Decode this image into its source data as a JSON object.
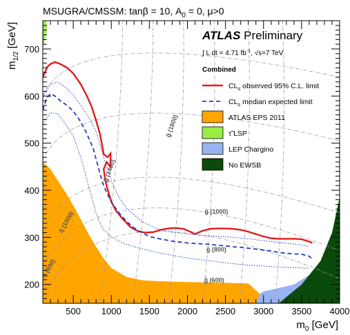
{
  "chart_data": {
    "type": "line",
    "title": "MSUGRA/CMSSM: tanβ = 10, A₀ = 0, μ>0",
    "title_parts": {
      "pre": "MSUGRA/CMSSM: tan",
      "beta": "β",
      "mid": " = 10, A",
      "sub": "0",
      "post": " = 0, μ>0"
    },
    "xlabel": {
      "base": "m",
      "sub": "0",
      "unit": " [GeV]"
    },
    "ylabel": {
      "base": "m",
      "sub": "1/2",
      "unit": " [GeV]"
    },
    "xlim": [
      100,
      4000
    ],
    "ylim": [
      160,
      760
    ],
    "xticks": [
      500,
      1000,
      1500,
      2000,
      2500,
      3000,
      3500,
      4000
    ],
    "yticks": [
      200,
      300,
      400,
      500,
      600,
      700
    ],
    "header": {
      "atlas": "ATLAS",
      "preliminary": " Preliminary",
      "lumi_prefix": "∫ L dt = 4.71 fb",
      "lumi_sup": "-1",
      "lumi_mid": ", √s=7 TeV",
      "combined": "Combined"
    },
    "legend_position": "top-right",
    "legend": [
      {
        "key": "observed",
        "prefix": "CL",
        "sub": "s",
        "suffix": " observed 95% C.L. limit",
        "style": "line",
        "color": "#e41a1c"
      },
      {
        "key": "expected",
        "prefix": "CL",
        "sub": "s",
        "suffix": " median expected limit",
        "style": "dashed",
        "color": "#1f3fc0"
      },
      {
        "key": "eps2011",
        "prefix": "",
        "sub": "",
        "suffix": "ATLAS EPS 2011",
        "style": "box",
        "color": "#ffa500"
      },
      {
        "key": "tau_lsp",
        "prefix": "τ̃ LSP",
        "sub": "",
        "suffix": "",
        "style": "box",
        "color": "#99ee44"
      },
      {
        "key": "lep",
        "prefix": "",
        "sub": "",
        "suffix": "LEP Chargino",
        "style": "box",
        "color": "#99b3f0"
      },
      {
        "key": "no_ewsb",
        "prefix": "",
        "sub": "",
        "suffix": "No EWSB",
        "style": "box",
        "color": "#0a4a0a"
      }
    ],
    "series": [
      {
        "name": "CLs observed 95% C.L. limit",
        "color": "#e41a1c",
        "x": [
          100,
          160,
          200,
          260,
          330,
          420,
          500,
          600,
          680,
          740,
          800,
          850,
          880,
          900,
          950,
          990,
          990,
          940,
          900,
          920,
          960,
          1000,
          1060,
          1150,
          1250,
          1350,
          1450,
          1550,
          1650,
          1750,
          1850,
          1950,
          2050,
          2100,
          2200,
          2300,
          2400,
          2500,
          2600,
          2700,
          2800,
          2900,
          3000,
          3100,
          3200,
          3300,
          3400,
          3500,
          3580,
          3620,
          3640
        ],
        "y": [
          640,
          662,
          668,
          672,
          668,
          660,
          648,
          625,
          600,
          578,
          548,
          520,
          495,
          477,
          470,
          478,
          450,
          460,
          445,
          422,
          397,
          376,
          357,
          339,
          322,
          313,
          310,
          311,
          316,
          319,
          320,
          318,
          311,
          307,
          314,
          318,
          319,
          319,
          318,
          316,
          312,
          307,
          302,
          298,
          297,
          297,
          297,
          296,
          292,
          290,
          288
        ]
      },
      {
        "name": "CLs median expected limit",
        "color": "#1f3fc0",
        "x": [
          100,
          150,
          200,
          260,
          330,
          420,
          500,
          580,
          650,
          700,
          760,
          810,
          860,
          900,
          950,
          1000,
          1100,
          1200,
          1300,
          1400,
          1500,
          1600,
          1700,
          1800,
          1900,
          2000,
          2100,
          2200,
          2300,
          2400,
          2500,
          2600,
          2700,
          2800,
          2900,
          3000,
          3100,
          3200,
          3300,
          3400,
          3500,
          3550,
          3600,
          3620,
          3640
        ],
        "y": [
          570,
          595,
          605,
          600,
          590,
          580,
          568,
          550,
          530,
          512,
          490,
          460,
          430,
          410,
          392,
          375,
          352,
          334,
          320,
          310,
          302,
          298,
          295,
          292,
          290,
          288,
          287,
          286,
          285,
          283,
          282,
          280,
          279,
          277,
          275,
          273,
          271,
          268,
          266,
          265,
          264,
          262,
          260,
          257,
          255
        ]
      },
      {
        "name": "expected +1σ",
        "color": "#1f3fc0",
        "x": [
          100,
          200,
          300,
          400,
          500,
          600,
          700,
          800,
          900,
          1000,
          1100,
          1200,
          1400,
          1600,
          1800,
          2000,
          2200,
          2400,
          2600,
          2800,
          3000,
          3200,
          3400,
          3500,
          3560,
          3600
        ],
        "y": [
          598,
          625,
          630,
          618,
          602,
          580,
          556,
          525,
          470,
          420,
          385,
          362,
          334,
          318,
          311,
          307,
          304,
          302,
          300,
          297,
          293,
          289,
          286,
          284,
          282,
          280
        ]
      },
      {
        "name": "expected -1σ",
        "color": "#1f3fc0",
        "x": [
          100,
          200,
          300,
          400,
          500,
          600,
          650,
          700,
          750,
          800,
          850,
          900,
          1000,
          1100,
          1200,
          1300,
          1400,
          1500,
          1600,
          1800,
          2000,
          2200,
          2400,
          2600,
          2800,
          3000,
          3200,
          3400,
          3500,
          3600
        ],
        "y": [
          540,
          565,
          562,
          540,
          515,
          470,
          440,
          410,
          380,
          352,
          330,
          316,
          302,
          292,
          285,
          280,
          276,
          272,
          268,
          262,
          256,
          252,
          248,
          244,
          241,
          239,
          237,
          236,
          235,
          234
        ]
      }
    ],
    "regions": [
      {
        "key": "eps2011",
        "color": "#ffa500",
        "polygon": [
          [
            100,
            460
          ],
          [
            200,
            445
          ],
          [
            300,
            420
          ],
          [
            400,
            395
          ],
          [
            500,
            368
          ],
          [
            600,
            338
          ],
          [
            700,
            307
          ],
          [
            800,
            280
          ],
          [
            900,
            255
          ],
          [
            1000,
            235
          ],
          [
            1200,
            216
          ],
          [
            1400,
            209
          ],
          [
            1600,
            207
          ],
          [
            2000,
            205
          ],
          [
            2400,
            204
          ],
          [
            2800,
            202
          ],
          [
            2950,
            180
          ],
          [
            2950,
            160
          ],
          [
            100,
            160
          ]
        ]
      },
      {
        "key": "tau_lsp",
        "color": "#99ee44",
        "polygon": [
          [
            100,
            760
          ],
          [
            150,
            760
          ],
          [
            150,
            735
          ],
          [
            100,
            700
          ]
        ]
      },
      {
        "key": "lep",
        "color": "#99b3f0",
        "polygon": [
          [
            2900,
            160
          ],
          [
            2950,
            180
          ],
          [
            3000,
            185
          ],
          [
            3400,
            200
          ],
          [
            3800,
            240
          ],
          [
            4000,
            260
          ],
          [
            4000,
            160
          ]
        ]
      },
      {
        "key": "no_ewsb",
        "color": "#0a4a0a",
        "polygon": [
          [
            3200,
            160
          ],
          [
            3500,
            200
          ],
          [
            3750,
            250
          ],
          [
            3900,
            310
          ],
          [
            4000,
            385
          ],
          [
            4000,
            160
          ]
        ]
      }
    ],
    "gluino_labels": [
      {
        "text": "g̃ (1800)",
        "x": 1820,
        "y": 535,
        "rotate": -70
      },
      {
        "text": "g̃ (1400)",
        "x": 1000,
        "y": 440,
        "rotate": -70
      },
      {
        "text": "g̃ (1000)",
        "x": 2380,
        "y": 350,
        "rotate": 0
      },
      {
        "text": "g̃ (800)",
        "x": 2380,
        "y": 270,
        "rotate": 0
      },
      {
        "text": "g̃ (600)",
        "x": 2350,
        "y": 205,
        "rotate": 0
      },
      {
        "text": "q̃ (1000)",
        "x": 430,
        "y": 330,
        "rotate": -60
      },
      {
        "text": "q̃ (600)",
        "x": 200,
        "y": 232,
        "rotate": -60
      }
    ]
  }
}
